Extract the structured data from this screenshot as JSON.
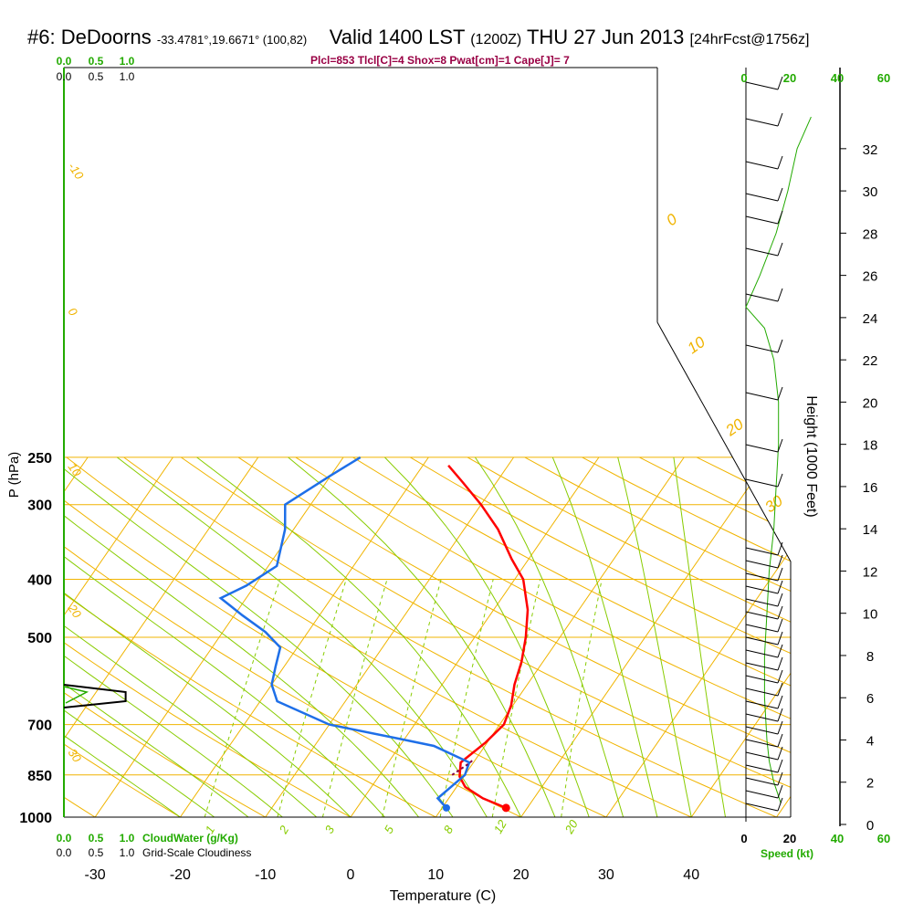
{
  "title": {
    "station": "#6: DeDoorns",
    "coords": "-33.4781°,19.6671° (100,82)",
    "valid": "Valid 1400 LST",
    "utc": "(1200Z)",
    "date": "THU 27 Jun 2013",
    "forecast": "[24hrFcst@1756z]"
  },
  "params": "Plcl=853 Tlcl[C]=4 Shox=8 Pwat[cm]=1 Cape[J]= 7",
  "colors": {
    "temperature": "#ff0000",
    "dewpoint": "#1e6fe8",
    "isotherm": "#f0b400",
    "dry_adiabat": "#f0b400",
    "moist_adiabat": "#88cc00",
    "mixing_ratio": "#88cc00",
    "green_text": "#22aa00",
    "params_text": "#990044"
  },
  "chart_data": {
    "type": "line",
    "subtype": "skew-T log-P sounding",
    "xlabel": "Temperature (C)",
    "ylabel": "P (hPa)",
    "xticks": [
      -30,
      -20,
      -10,
      0,
      10,
      20,
      30,
      40
    ],
    "yticks": [
      250,
      300,
      400,
      500,
      700,
      850,
      1000
    ],
    "xlim": [
      -33,
      36
    ],
    "ylim": [
      1000,
      250
    ],
    "isotherm_labels": [
      "-30",
      "-20",
      "-10",
      "0",
      "10",
      "20",
      "30"
    ],
    "mixing_ratio_labels": [
      "1",
      "2",
      "3",
      "5",
      "8",
      "12",
      "20"
    ],
    "series": [
      {
        "name": "Temperature",
        "points": [
          [
            17.5,
            965
          ],
          [
            14,
            930
          ],
          [
            11,
            890
          ],
          [
            9.5,
            855
          ],
          [
            8.5,
            810
          ],
          [
            9.8,
            750
          ],
          [
            10.5,
            700
          ],
          [
            9.8,
            650
          ],
          [
            8.5,
            600
          ],
          [
            7.5,
            550
          ],
          [
            6,
            500
          ],
          [
            4,
            450
          ],
          [
            1,
            400
          ],
          [
            -2,
            370
          ],
          [
            -6,
            330
          ],
          [
            -10,
            300
          ],
          [
            -14,
            275
          ],
          [
            -17,
            258
          ]
        ]
      },
      {
        "name": "Dewpoint",
        "points": [
          [
            10.5,
            965
          ],
          [
            8.7,
            930
          ],
          [
            9.5,
            880
          ],
          [
            10,
            850
          ],
          [
            9.5,
            810
          ],
          [
            4,
            760
          ],
          [
            -0.5,
            740
          ],
          [
            -10,
            700
          ],
          [
            -18,
            640
          ],
          [
            -20,
            600
          ],
          [
            -21,
            560
          ],
          [
            -22,
            520
          ],
          [
            -25,
            490
          ],
          [
            -29,
            460
          ],
          [
            -33,
            430
          ],
          [
            -31,
            410
          ],
          [
            -29,
            380
          ],
          [
            -31,
            330
          ],
          [
            -33,
            300
          ],
          [
            -30,
            268
          ],
          [
            -28,
            250
          ]
        ]
      },
      {
        "name": "Parcel",
        "points": [
          [
            8.5,
            850
          ],
          [
            9.5,
            815
          ],
          [
            9.8,
            800
          ]
        ]
      }
    ],
    "surface_temperature": 17.5,
    "surface_dewpoint": 10.5
  },
  "cloud_panel": {
    "top_green_labels": [
      "0.0",
      "0.5",
      "1.0"
    ],
    "top_black_labels": [
      "0.0",
      "0.5",
      "1.0"
    ],
    "bottom_green_labels": [
      "0.0",
      "0.5",
      "1.0"
    ],
    "bottom_green_title": "CloudWater (g/Kg)",
    "bottom_black_labels": [
      "0.0",
      "0.5",
      "1.0"
    ],
    "bottom_black_title": "Grid-Scale Cloudiness",
    "cloudiness_max": 1.0
  },
  "wind_panel": {
    "speed_labels": [
      "0",
      "20",
      "40",
      "60"
    ],
    "speed_title": "Speed (kt)",
    "height_title": "Height (1000 Feet)",
    "height_ticks": [
      0,
      2,
      4,
      6,
      8,
      10,
      12,
      14,
      16,
      18,
      20,
      22,
      24,
      26,
      28,
      30,
      32
    ],
    "speed_profile": [
      [
        15,
        1
      ],
      [
        12,
        2
      ],
      [
        10,
        3
      ],
      [
        9,
        4
      ],
      [
        8,
        6
      ],
      [
        8,
        8
      ],
      [
        9,
        10
      ],
      [
        10,
        12
      ],
      [
        12,
        14
      ],
      [
        13,
        16
      ],
      [
        14,
        18
      ],
      [
        14,
        20
      ],
      [
        12,
        22
      ],
      [
        8,
        23.5
      ],
      [
        0,
        24.5
      ],
      [
        6,
        26
      ],
      [
        13,
        28
      ],
      [
        18,
        30
      ],
      [
        22,
        32
      ],
      [
        28,
        33.5
      ]
    ]
  }
}
